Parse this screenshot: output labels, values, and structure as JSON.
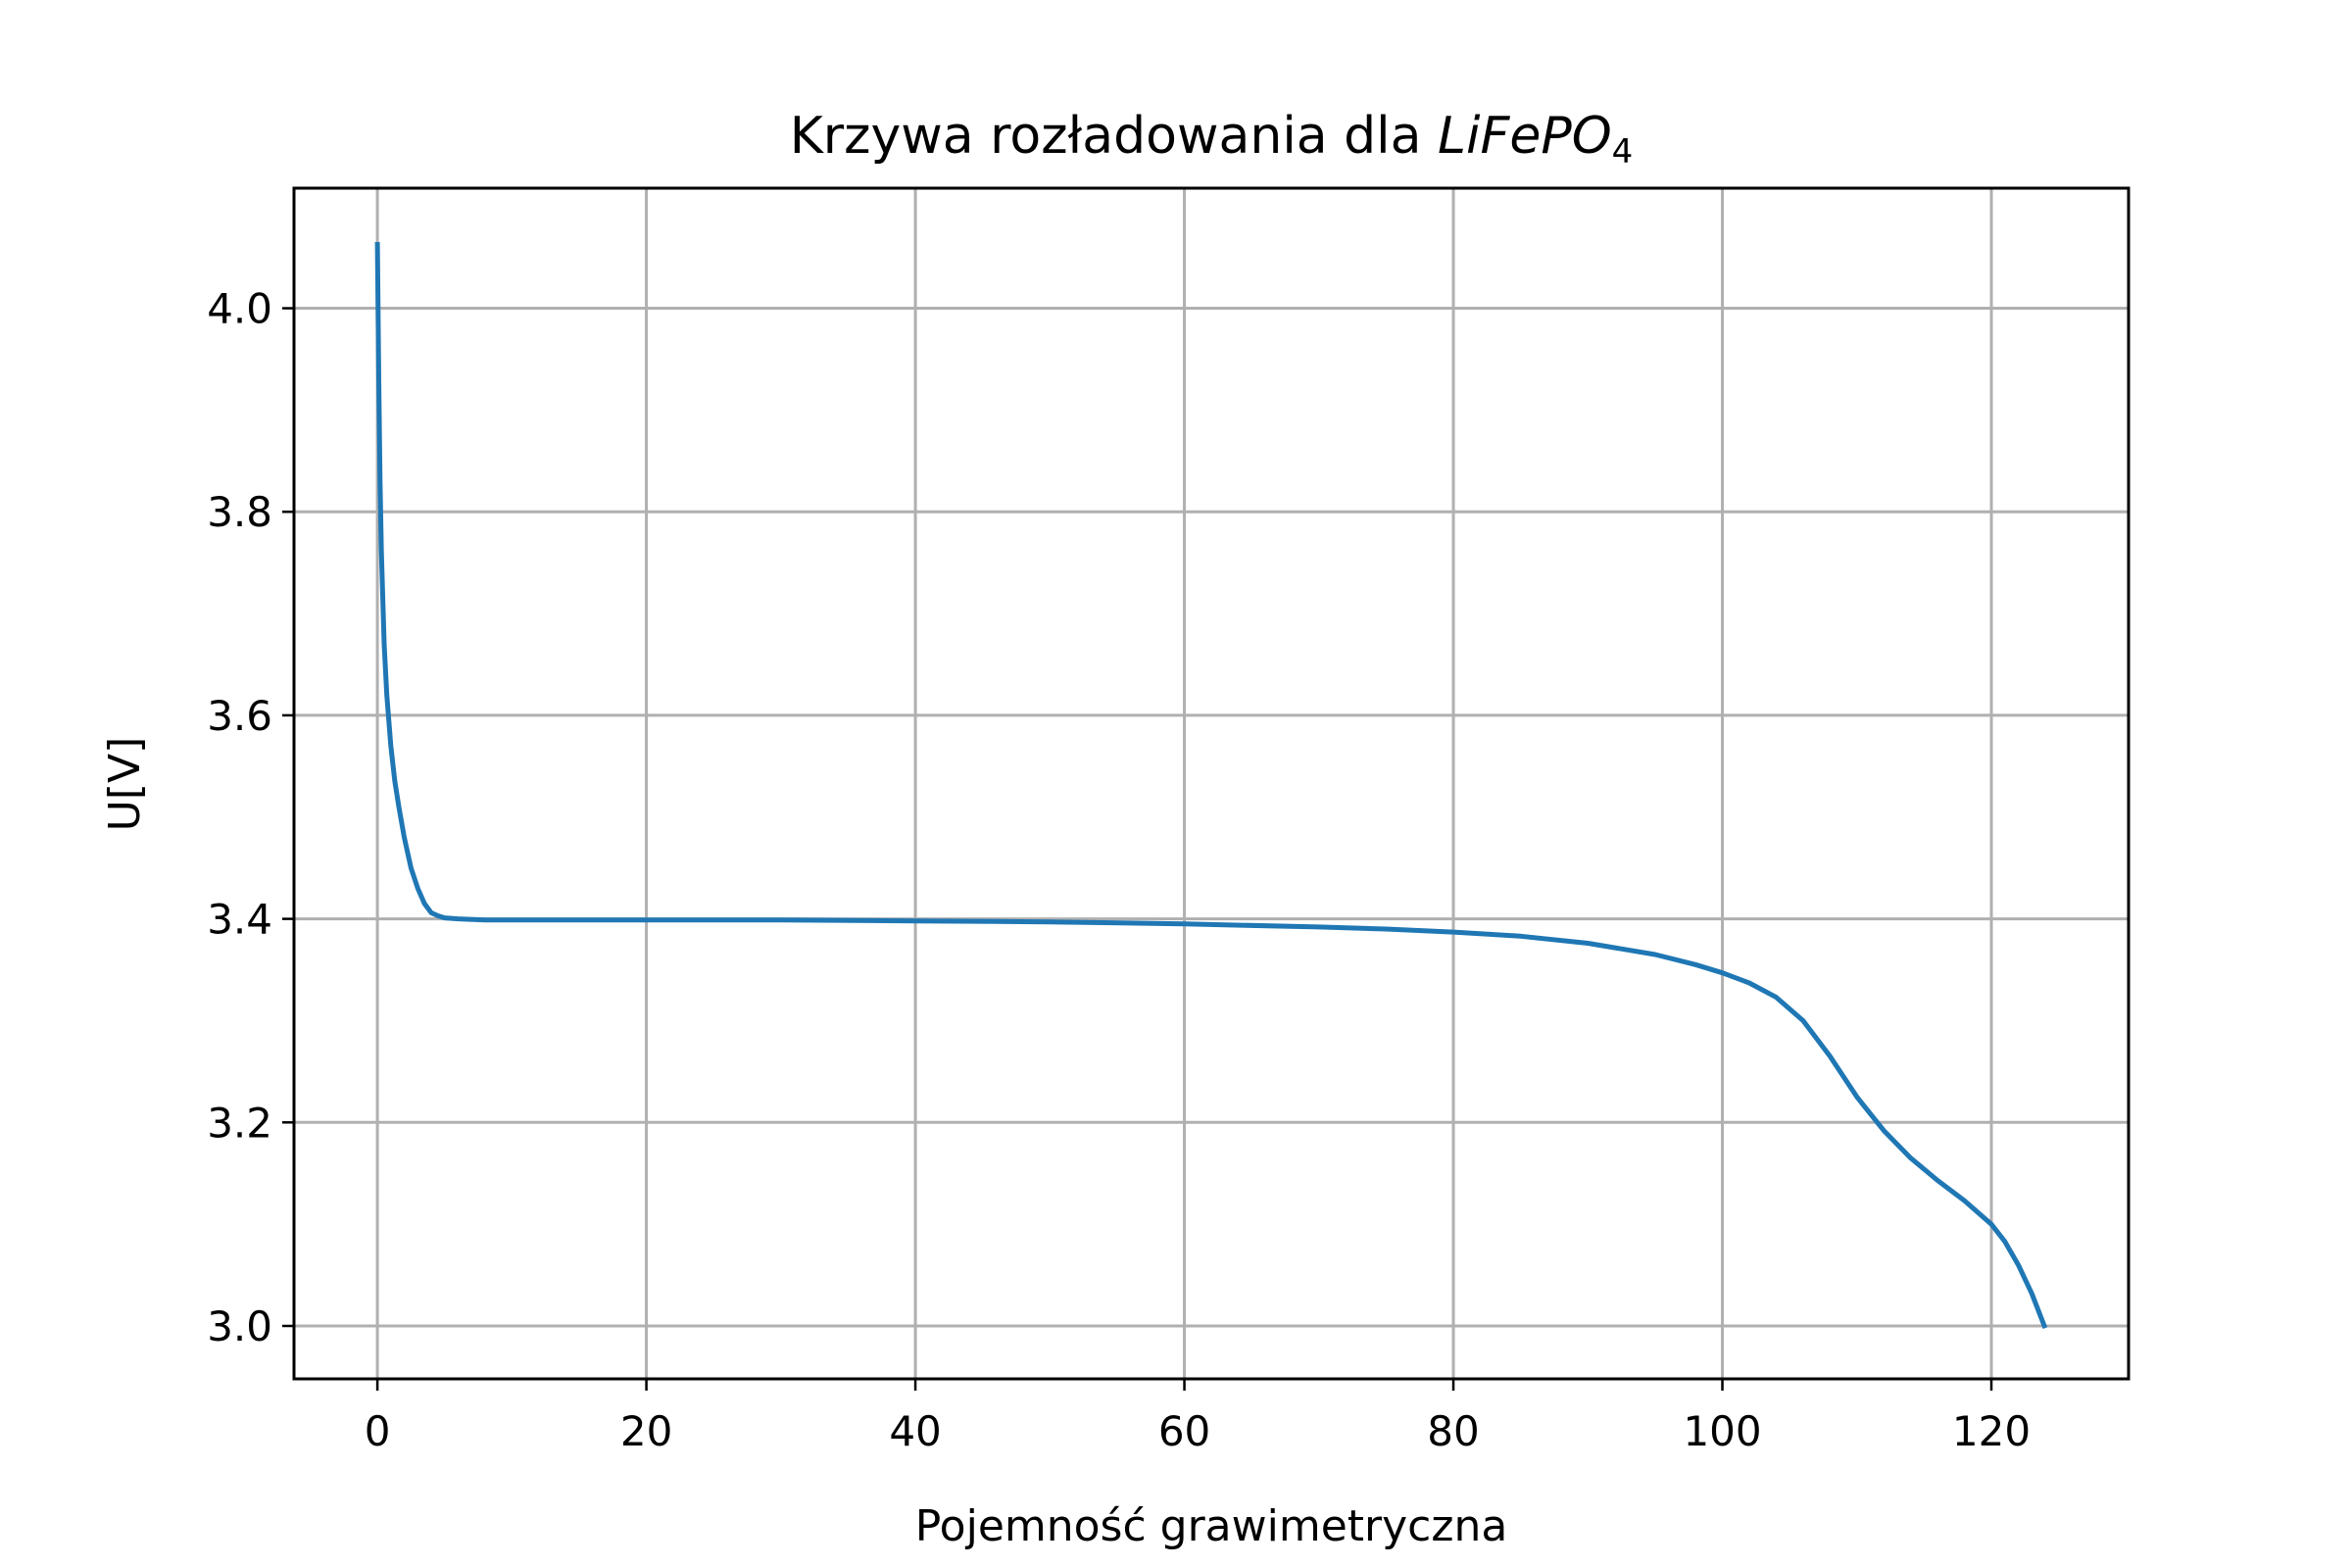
{
  "chart_data": {
    "type": "line",
    "title": {
      "prefix": "Krzywa rozładowania dla ",
      "formula_main": "LiFePO",
      "formula_subscript": "4"
    },
    "xlabel": "Pojemność grawimetryczna",
    "ylabel": "U[V]",
    "xlim": [
      -6.2,
      130.2
    ],
    "ylim": [
      2.948,
      4.118
    ],
    "x_ticks": [
      0,
      20,
      40,
      60,
      80,
      100,
      120
    ],
    "x_tick_labels": [
      "0",
      "20",
      "40",
      "60",
      "80",
      "100",
      "120"
    ],
    "y_ticks": [
      3.0,
      3.2,
      3.4,
      3.6,
      3.8,
      4.0
    ],
    "y_tick_labels": [
      "3.0",
      "3.2",
      "3.4",
      "3.6",
      "3.8",
      "4.0"
    ],
    "grid": true,
    "series": [
      {
        "color": "#1f77b4",
        "x": [
          0,
          0.1,
          0.2,
          0.3,
          0.5,
          0.7,
          1.0,
          1.3,
          1.6,
          2.0,
          2.5,
          3.0,
          3.5,
          4.0,
          4.5,
          5.0,
          6.0,
          8.0,
          10,
          15,
          20,
          30,
          40,
          50,
          60,
          70,
          75,
          80,
          85,
          90,
          95,
          98,
          100,
          102,
          104,
          106,
          108,
          110,
          112,
          114,
          116,
          118,
          120,
          121,
          122,
          123,
          124
        ],
        "y": [
          4.065,
          3.93,
          3.83,
          3.76,
          3.67,
          3.62,
          3.57,
          3.535,
          3.51,
          3.48,
          3.45,
          3.43,
          3.415,
          3.406,
          3.403,
          3.401,
          3.4,
          3.399,
          3.399,
          3.399,
          3.399,
          3.399,
          3.398,
          3.397,
          3.395,
          3.392,
          3.39,
          3.387,
          3.383,
          3.376,
          3.365,
          3.355,
          3.347,
          3.337,
          3.323,
          3.3,
          3.265,
          3.225,
          3.192,
          3.165,
          3.143,
          3.123,
          3.1,
          3.083,
          3.06,
          3.032,
          2.998
        ]
      }
    ]
  }
}
